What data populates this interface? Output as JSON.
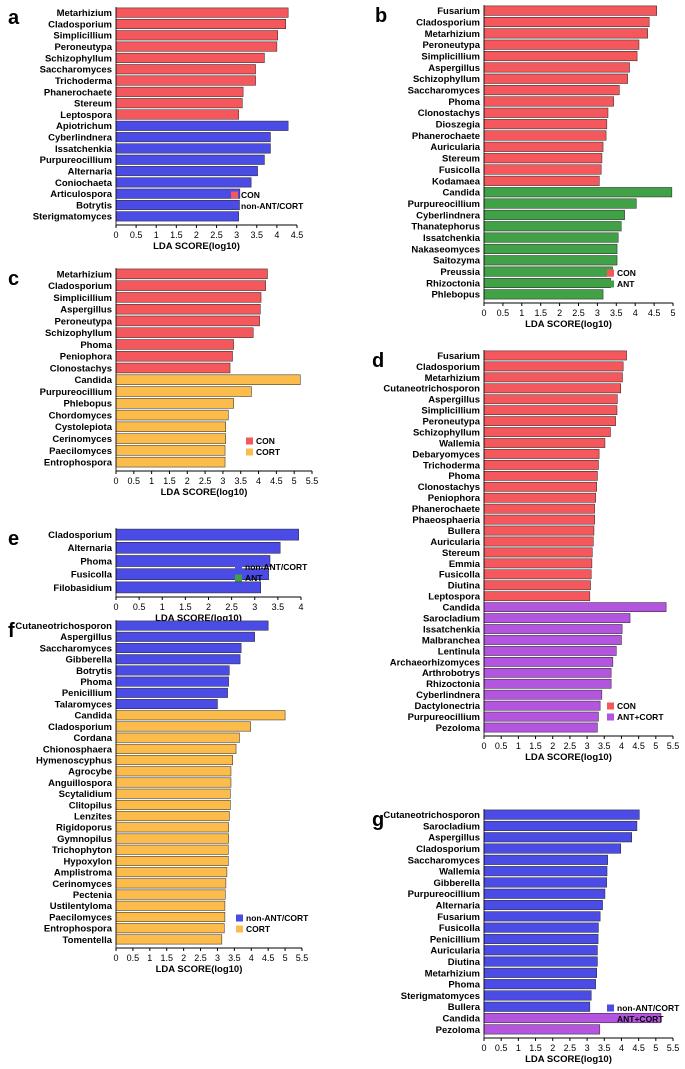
{
  "colors": {
    "CON": "#f4575c",
    "non-ANT/CORT": "#4b4ce6",
    "ANT": "#41a147",
    "CORT": "#fbbc4b",
    "ANT+CORT": "#b455e0"
  },
  "chart_data": [
    {
      "type": "bar",
      "panel": "a",
      "xlabel": "LDA SCORE(log10)",
      "xlim": [
        0,
        4.5
      ],
      "ticks": [
        "0",
        "0.5",
        "1",
        "1.5",
        "2",
        "2.5",
        "3",
        "3.5",
        "4",
        "4.5"
      ],
      "categories": [
        "Metarhizium",
        "Cladosporium",
        "Simplicillium",
        "Peroneutypa",
        "Schizophyllum",
        "Saccharomyces",
        "Trichoderma",
        "Phanerochaete",
        "Stereum",
        "Leptospora",
        "Apiotrichum",
        "Cyberlindnera",
        "Issatchenkia",
        "Purpureocillium",
        "Alternaria",
        "Coniochaeta",
        "Articulospora",
        "Botrytis",
        "Sterigmatomyces"
      ],
      "values": [
        4.28,
        4.22,
        4.02,
        4.0,
        3.69,
        3.47,
        3.47,
        3.16,
        3.14,
        3.05,
        4.28,
        3.84,
        3.84,
        3.69,
        3.52,
        3.36,
        3.08,
        3.07,
        3.05
      ],
      "groups": [
        "CON",
        "CON",
        "CON",
        "CON",
        "CON",
        "CON",
        "CON",
        "CON",
        "CON",
        "CON",
        "non-ANT/CORT",
        "non-ANT/CORT",
        "non-ANT/CORT",
        "non-ANT/CORT",
        "non-ANT/CORT",
        "non-ANT/CORT",
        "non-ANT/CORT",
        "non-ANT/CORT",
        "non-ANT/CORT"
      ],
      "legend": [
        "CON",
        "non-ANT/CORT"
      ]
    },
    {
      "type": "bar",
      "panel": "b",
      "xlabel": "LDA SCORE(log10)",
      "xlim": [
        0,
        5
      ],
      "ticks": [
        "0",
        "0.5",
        "1",
        "1.5",
        "2",
        "2.5",
        "3",
        "3.5",
        "4",
        "4.5",
        "5"
      ],
      "categories": [
        "Fusarium",
        "Cladosporium",
        "Metarhizium",
        "Peroneutypa",
        "Simplicillium",
        "Aspergillus",
        "Schizophyllum",
        "Saccharomyces",
        "Phoma",
        "Clonostachys",
        "Dioszegia",
        "Phanerochaete",
        "Auricularia",
        "Stereum",
        "Fusicolla",
        "Kodamaea",
        "Candida",
        "Purpureocillium",
        "Cyberlindnera",
        "Thanatephorus",
        "Issatchenkia",
        "Nakaseomyces",
        "Saitozyma",
        "Preussia",
        "Rhizoctonia",
        "Phlebopus"
      ],
      "values": [
        4.57,
        4.37,
        4.33,
        4.1,
        4.05,
        3.85,
        3.8,
        3.58,
        3.43,
        3.28,
        3.25,
        3.23,
        3.15,
        3.12,
        3.1,
        3.05,
        4.97,
        4.03,
        3.72,
        3.63,
        3.55,
        3.52,
        3.52,
        3.4,
        3.35,
        3.15
      ],
      "groups": [
        "CON",
        "CON",
        "CON",
        "CON",
        "CON",
        "CON",
        "CON",
        "CON",
        "CON",
        "CON",
        "CON",
        "CON",
        "CON",
        "CON",
        "CON",
        "CON",
        "ANT",
        "ANT",
        "ANT",
        "ANT",
        "ANT",
        "ANT",
        "ANT",
        "ANT",
        "ANT",
        "ANT"
      ],
      "legend": [
        "CON",
        "ANT"
      ]
    },
    {
      "type": "bar",
      "panel": "c",
      "xlabel": "LDA SCORE(log10)",
      "xlim": [
        0,
        5.5
      ],
      "ticks": [
        "0",
        "0.5",
        "1",
        "1.5",
        "2",
        "2.5",
        "3",
        "3.5",
        "4",
        "4.5",
        "5",
        "5.5"
      ],
      "categories": [
        "Metarhizium",
        "Cladosporium",
        "Simplicillium",
        "Aspergillus",
        "Peroneutypa",
        "Schizophyllum",
        "Phoma",
        "Peniophora",
        "Clonostachys",
        "Candida",
        "Purpureocillium",
        "Phlebopus",
        "Chordomyces",
        "Cystolepiota",
        "Cerinomyces",
        "Paecilomyces",
        "Entrophospora"
      ],
      "values": [
        4.25,
        4.2,
        4.07,
        4.05,
        4.03,
        3.85,
        3.3,
        3.27,
        3.2,
        5.17,
        3.8,
        3.3,
        3.15,
        3.08,
        3.08,
        3.06,
        3.06
      ],
      "groups": [
        "CON",
        "CON",
        "CON",
        "CON",
        "CON",
        "CON",
        "CON",
        "CON",
        "CON",
        "CORT",
        "CORT",
        "CORT",
        "CORT",
        "CORT",
        "CORT",
        "CORT",
        "CORT"
      ],
      "legend": [
        "CON",
        "CORT"
      ]
    },
    {
      "type": "bar",
      "panel": "d",
      "xlabel": "LDA SCORE(log10)",
      "xlim": [
        0,
        5.5
      ],
      "ticks": [
        "0",
        "0.5",
        "1",
        "1.5",
        "2",
        "2.5",
        "3",
        "3.5",
        "4",
        "4.5",
        "5",
        "5.5"
      ],
      "categories": [
        "Fusarium",
        "Cladosporium",
        "Metarhizium",
        "Cutaneotrichosporon",
        "Aspergillus",
        "Simplicillium",
        "Peroneutypa",
        "Schizophyllum",
        "Wallemia",
        "Debaryomyces",
        "Trichoderma",
        "Phoma",
        "Clonostachys",
        "Peniophora",
        "Phanerochaete",
        "Phaeosphaeria",
        "Bullera",
        "Auricularia",
        "Stereum",
        "Emmia",
        "Fusicolla",
        "Diutina",
        "Leptospora",
        "Candida",
        "Sarocladium",
        "Issatchenkia",
        "Malbranchea",
        "Lentinula",
        "Archaeorhizomyces",
        "Arthrobotrys",
        "Rhizoctonia",
        "Cyberlindnera",
        "Dactylonectria",
        "Purpureocillium",
        "Pezoloma"
      ],
      "values": [
        4.15,
        4.05,
        4.03,
        3.98,
        3.88,
        3.87,
        3.83,
        3.68,
        3.52,
        3.35,
        3.33,
        3.3,
        3.28,
        3.25,
        3.22,
        3.22,
        3.2,
        3.18,
        3.15,
        3.14,
        3.12,
        3.1,
        3.08,
        5.3,
        4.25,
        4.02,
        4.0,
        3.85,
        3.75,
        3.7,
        3.7,
        3.43,
        3.38,
        3.33,
        3.3
      ],
      "groups": [
        "CON",
        "CON",
        "CON",
        "CON",
        "CON",
        "CON",
        "CON",
        "CON",
        "CON",
        "CON",
        "CON",
        "CON",
        "CON",
        "CON",
        "CON",
        "CON",
        "CON",
        "CON",
        "CON",
        "CON",
        "CON",
        "CON",
        "CON",
        "ANT+CORT",
        "ANT+CORT",
        "ANT+CORT",
        "ANT+CORT",
        "ANT+CORT",
        "ANT+CORT",
        "ANT+CORT",
        "ANT+CORT",
        "ANT+CORT",
        "ANT+CORT",
        "ANT+CORT",
        "ANT+CORT"
      ],
      "legend": [
        "CON",
        "ANT+CORT"
      ]
    },
    {
      "type": "bar",
      "panel": "e",
      "xlabel": "LDA SCORE(log10)",
      "xlim": [
        0,
        4
      ],
      "ticks": [
        "0",
        "0.5",
        "1",
        "1.5",
        "2",
        "2.5",
        "3",
        "3.5",
        "4"
      ],
      "categories": [
        "Cladosporium",
        "Alternaria",
        "Phoma",
        "Fusicolla",
        "Filobasidium"
      ],
      "values": [
        3.95,
        3.55,
        3.33,
        3.3,
        3.13
      ],
      "groups": [
        "non-ANT/CORT",
        "non-ANT/CORT",
        "non-ANT/CORT",
        "non-ANT/CORT",
        "non-ANT/CORT"
      ],
      "legend": [
        "non-ANT/CORT",
        "ANT"
      ]
    },
    {
      "type": "bar",
      "panel": "f",
      "xlabel": "LDA SCORE(log10)",
      "xlim": [
        0,
        5.5
      ],
      "ticks": [
        "0",
        "0.5",
        "1",
        "1.5",
        "2",
        "2.5",
        "3",
        "3.5",
        "4",
        "4.5",
        "5",
        "5.5"
      ],
      "categories": [
        "Cutaneotrichosporon",
        "Aspergillus",
        "Saccharomyces",
        "Gibberella",
        "Botrytis",
        "Phoma",
        "Penicillium",
        "Talaromyces",
        "Candida",
        "Cladosporium",
        "Cordana",
        "Chionosphaera",
        "Hymenoscyphus",
        "Agrocybe",
        "Anguillospora",
        "Scytalidium",
        "Clitopilus",
        "Lenzites",
        "Rigidoporus",
        "Gymnopilus",
        "Trichophyton",
        "Hypoxylon",
        "Amplistroma",
        "Cerinomyces",
        "Pectenia",
        "Ustilentyloma",
        "Paecilomyces",
        "Entrophospora",
        "Tomentella"
      ],
      "values": [
        4.5,
        4.1,
        3.7,
        3.67,
        3.35,
        3.33,
        3.3,
        3.0,
        5.0,
        3.98,
        3.65,
        3.55,
        3.45,
        3.4,
        3.4,
        3.38,
        3.38,
        3.35,
        3.33,
        3.33,
        3.32,
        3.32,
        3.28,
        3.25,
        3.23,
        3.22,
        3.22,
        3.2,
        3.13
      ],
      "groups": [
        "non-ANT/CORT",
        "non-ANT/CORT",
        "non-ANT/CORT",
        "non-ANT/CORT",
        "non-ANT/CORT",
        "non-ANT/CORT",
        "non-ANT/CORT",
        "non-ANT/CORT",
        "CORT",
        "CORT",
        "CORT",
        "CORT",
        "CORT",
        "CORT",
        "CORT",
        "CORT",
        "CORT",
        "CORT",
        "CORT",
        "CORT",
        "CORT",
        "CORT",
        "CORT",
        "CORT",
        "CORT",
        "CORT",
        "CORT",
        "CORT",
        "CORT"
      ],
      "legend": [
        "non-ANT/CORT",
        "CORT"
      ]
    },
    {
      "type": "bar",
      "panel": "g",
      "xlabel": "LDA SCORE(log10)",
      "xlim": [
        0,
        5.5
      ],
      "ticks": [
        "0",
        "0.5",
        "1",
        "1.5",
        "2",
        "2.5",
        "3",
        "3.5",
        "4",
        "4.5",
        "5",
        "5.5"
      ],
      "categories": [
        "Cutaneotrichosporon",
        "Sarocladium",
        "Aspergillus",
        "Cladosporium",
        "Saccharomyces",
        "Wallemia",
        "Gibberella",
        "Purpureocillium",
        "Alternaria",
        "Fusarium",
        "Fusicolla",
        "Penicillium",
        "Auricularia",
        "Diutina",
        "Metarhizium",
        "Phoma",
        "Sterigmatomyces",
        "Bullera",
        "Candida",
        "Pezoloma"
      ],
      "values": [
        4.52,
        4.45,
        4.3,
        3.98,
        3.6,
        3.58,
        3.57,
        3.52,
        3.45,
        3.38,
        3.33,
        3.32,
        3.3,
        3.3,
        3.28,
        3.25,
        3.12,
        3.08,
        5.15,
        3.37
      ],
      "groups": [
        "non-ANT/CORT",
        "non-ANT/CORT",
        "non-ANT/CORT",
        "non-ANT/CORT",
        "non-ANT/CORT",
        "non-ANT/CORT",
        "non-ANT/CORT",
        "non-ANT/CORT",
        "non-ANT/CORT",
        "non-ANT/CORT",
        "non-ANT/CORT",
        "non-ANT/CORT",
        "non-ANT/CORT",
        "non-ANT/CORT",
        "non-ANT/CORT",
        "non-ANT/CORT",
        "non-ANT/CORT",
        "non-ANT/CORT",
        "ANT+CORT",
        "ANT+CORT"
      ],
      "legend": [
        "non-ANT/CORT",
        "ANT+CORT"
      ]
    }
  ]
}
